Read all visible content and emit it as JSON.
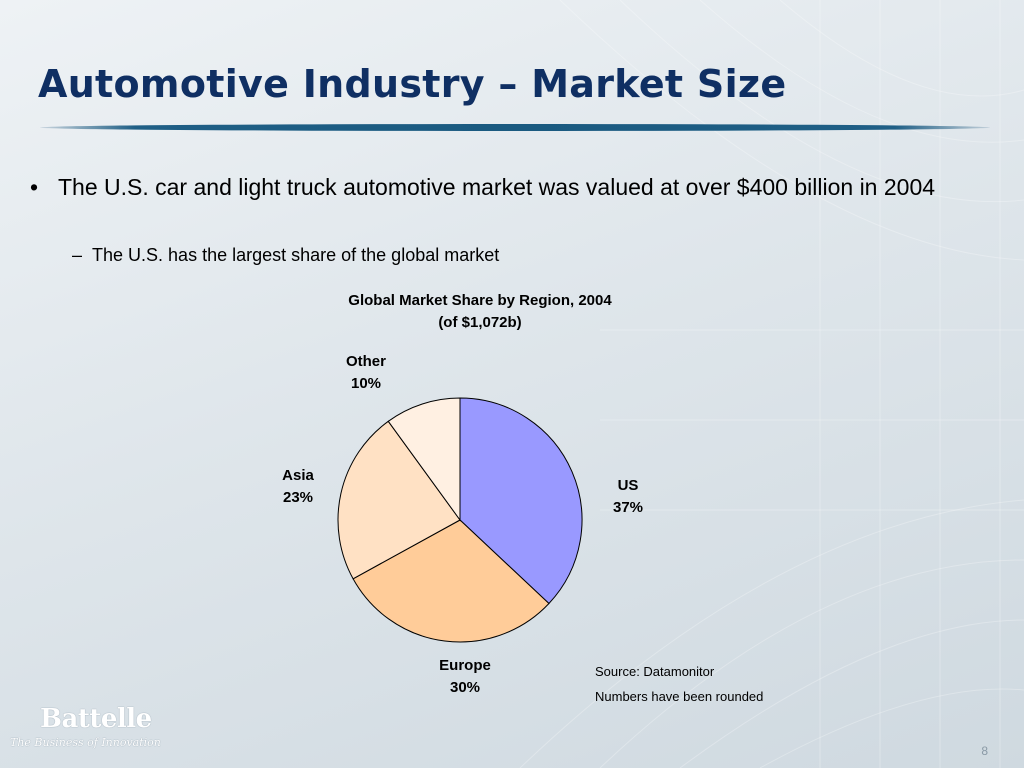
{
  "slide": {
    "title": "Automotive Industry – Market Size",
    "bullet_marker": "•",
    "sub_marker": "–",
    "bullet_1": "The U.S. car and light truck automotive market was valued at over $400 billion in 2004",
    "bullet_2": "The U.S. has the largest share of the global market",
    "source": "Source: Datamonitor",
    "note": "Numbers have been rounded",
    "logo_text": "Battelle",
    "logo_tagline": "The Business of Innovation",
    "page_number": "8",
    "title_color": "#0f2f63"
  },
  "chart_data": {
    "type": "pie",
    "title": "Global Market Share by Region, 2004",
    "subtitle": "(of $1,072b)",
    "legend": "none",
    "slices": [
      {
        "name": "US",
        "value": 37,
        "label": "37%",
        "color": "#9999ff"
      },
      {
        "name": "Europe",
        "value": 30,
        "label": "30%",
        "color": "#ffcc99"
      },
      {
        "name": "Asia",
        "value": 23,
        "label": "23%",
        "color": "#ffe1c4"
      },
      {
        "name": "Other",
        "value": 10,
        "label": "10%",
        "color": "#fff0e2"
      }
    ]
  }
}
